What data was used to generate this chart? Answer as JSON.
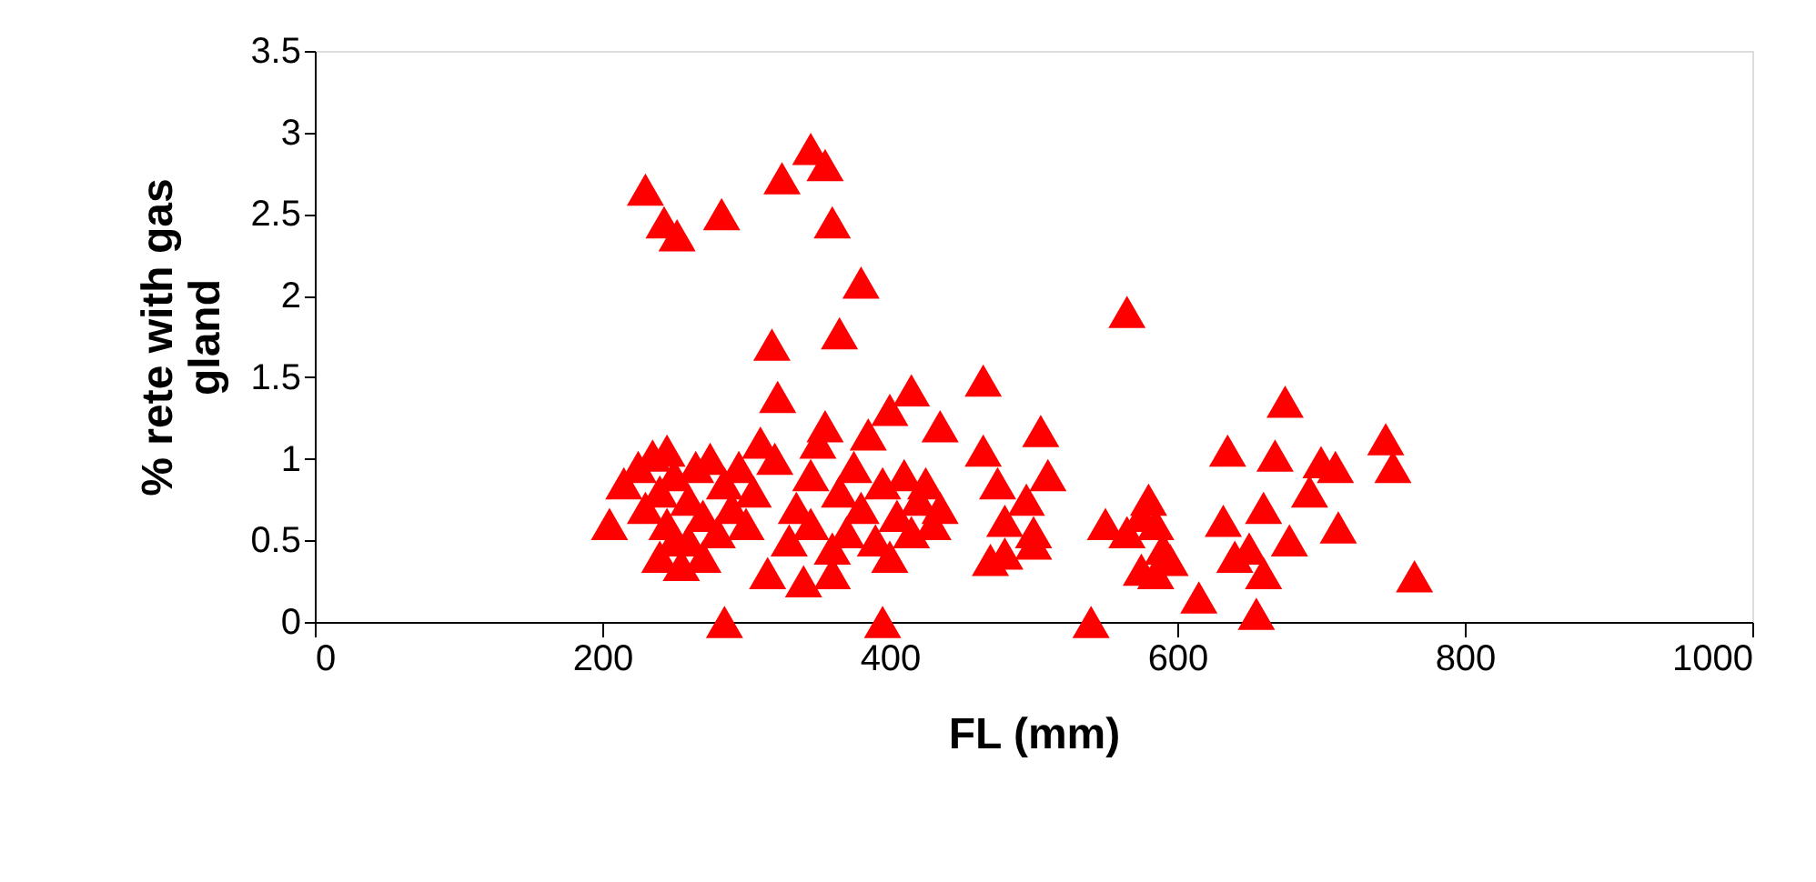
{
  "chart_data": {
    "type": "scatter",
    "xlabel": "FL (mm)",
    "ylabel": "% rete with gas gland",
    "marker": "triangle",
    "grid": false,
    "xlim": [
      0,
      1000
    ],
    "xticks": [
      0,
      200,
      400,
      600,
      800,
      1000
    ],
    "ylim": [
      0,
      3.5
    ],
    "yticks": [
      0,
      0.5,
      1,
      1.5,
      2,
      2.5,
      3,
      3.5
    ],
    "series": [
      {
        "color": "#ff0000",
        "x": [
          230,
          243,
          252,
          283,
          325,
          345,
          355,
          360,
          380,
          365,
          318,
          322,
          565,
          465,
          415,
          400,
          435,
          505,
          675,
          745,
          750,
          635,
          668,
          700,
          710,
          692,
          712,
          678,
          765,
          660,
          632,
          640,
          650,
          615,
          655,
          660,
          540,
          550,
          565,
          575,
          580,
          585,
          590,
          595,
          575,
          585,
          480,
          470,
          465,
          475,
          480,
          495,
          500,
          510,
          500,
          395,
          285,
          205,
          215,
          225,
          235,
          245,
          250,
          240,
          230,
          245,
          250,
          240,
          255,
          260,
          265,
          270,
          275,
          280,
          285,
          290,
          295,
          300,
          305,
          310,
          320,
          315,
          330,
          335,
          340,
          345,
          350,
          355,
          345,
          360,
          365,
          370,
          375,
          380,
          385,
          390,
          395,
          400,
          405,
          410,
          415,
          420,
          425,
          430,
          435,
          360,
          270,
          260
        ],
        "values": [
          2.65,
          2.45,
          2.37,
          2.5,
          2.72,
          2.9,
          2.8,
          2.45,
          2.08,
          1.77,
          1.7,
          1.38,
          1.9,
          1.48,
          1.42,
          1.3,
          1.2,
          1.17,
          1.35,
          1.12,
          0.95,
          1.05,
          1.02,
          0.98,
          0.95,
          0.8,
          0.58,
          0.5,
          0.28,
          0.7,
          0.62,
          0.4,
          0.45,
          0.15,
          0.05,
          0.3,
          0,
          0.6,
          0.55,
          0.65,
          0.75,
          0.6,
          0.45,
          0.38,
          0.32,
          0.3,
          0.42,
          0.38,
          1.05,
          0.85,
          0.62,
          0.75,
          0.55,
          0.9,
          0.48,
          0,
          0,
          0.6,
          0.85,
          0.95,
          1.02,
          1.05,
          0.9,
          0.8,
          0.7,
          0.6,
          0.5,
          0.4,
          0.35,
          0.75,
          0.95,
          0.65,
          1.0,
          0.55,
          0.85,
          0.7,
          0.95,
          0.6,
          0.8,
          1.1,
          1.0,
          0.3,
          0.5,
          0.7,
          0.25,
          0.9,
          1.1,
          1.2,
          0.6,
          0.45,
          0.8,
          0.55,
          0.95,
          0.7,
          1.15,
          0.5,
          0.85,
          0.4,
          0.65,
          0.9,
          0.55,
          0.75,
          0.85,
          0.6,
          0.7,
          0.3,
          0.4,
          0.5
        ]
      }
    ]
  }
}
